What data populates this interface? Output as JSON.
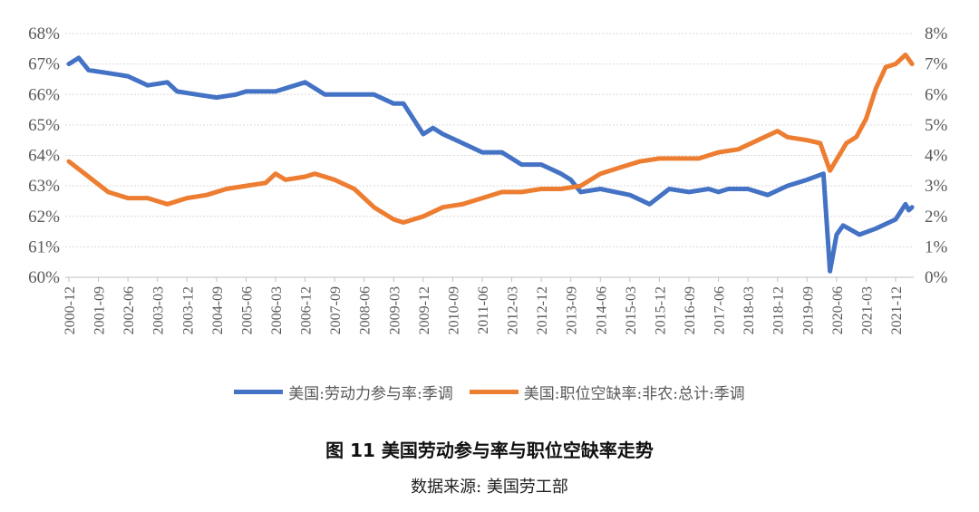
{
  "chart_data": {
    "type": "line",
    "title": "图  11  美国劳动参与率与职位空缺率走势",
    "source": "数据来源:  美国劳工部",
    "grid": true,
    "legend_position": "bottom",
    "y_left": {
      "ticks": [
        "60%",
        "61%",
        "62%",
        "63%",
        "64%",
        "65%",
        "66%",
        "67%",
        "68%"
      ],
      "range": [
        60,
        68
      ]
    },
    "y_right": {
      "ticks": [
        "0%",
        "1%",
        "2%",
        "3%",
        "4%",
        "5%",
        "6%",
        "7%",
        "8%"
      ],
      "range": [
        0,
        8
      ]
    },
    "x_ticks": [
      "2000-12",
      "2001-09",
      "2002-06",
      "2003-03",
      "2003-12",
      "2004-09",
      "2005-06",
      "2006-03",
      "2006-12",
      "2007-09",
      "2008-06",
      "2009-03",
      "2009-12",
      "2010-09",
      "2011-06",
      "2012-03",
      "2012-12",
      "2013-09",
      "2014-06",
      "2015-03",
      "2015-12",
      "2016-09",
      "2017-06",
      "2018-03",
      "2018-12",
      "2019-09",
      "2020-06",
      "2021-03",
      "2021-12"
    ],
    "series": [
      {
        "name": "美国:劳动力参与率:季调",
        "axis": "left",
        "color": "#4472C4",
        "points": [
          [
            "2000-12",
            67.0
          ],
          [
            "2001-03",
            67.2
          ],
          [
            "2001-06",
            66.8
          ],
          [
            "2001-12",
            66.7
          ],
          [
            "2002-06",
            66.6
          ],
          [
            "2002-12",
            66.3
          ],
          [
            "2003-06",
            66.4
          ],
          [
            "2003-09",
            66.1
          ],
          [
            "2004-03",
            66.0
          ],
          [
            "2004-09",
            65.9
          ],
          [
            "2005-03",
            66.0
          ],
          [
            "2005-06",
            66.1
          ],
          [
            "2006-03",
            66.1
          ],
          [
            "2006-12",
            66.4
          ],
          [
            "2007-06",
            66.0
          ],
          [
            "2008-03",
            66.0
          ],
          [
            "2008-09",
            66.0
          ],
          [
            "2009-03",
            65.7
          ],
          [
            "2009-06",
            65.7
          ],
          [
            "2009-12",
            64.7
          ],
          [
            "2010-03",
            64.9
          ],
          [
            "2010-06",
            64.7
          ],
          [
            "2010-12",
            64.4
          ],
          [
            "2011-06",
            64.1
          ],
          [
            "2011-12",
            64.1
          ],
          [
            "2012-06",
            63.7
          ],
          [
            "2012-12",
            63.7
          ],
          [
            "2013-06",
            63.4
          ],
          [
            "2013-09",
            63.2
          ],
          [
            "2013-12",
            62.8
          ],
          [
            "2014-06",
            62.9
          ],
          [
            "2015-03",
            62.7
          ],
          [
            "2015-09",
            62.4
          ],
          [
            "2016-03",
            62.9
          ],
          [
            "2016-09",
            62.8
          ],
          [
            "2017-03",
            62.9
          ],
          [
            "2017-06",
            62.8
          ],
          [
            "2017-09",
            62.9
          ],
          [
            "2018-03",
            62.9
          ],
          [
            "2018-09",
            62.7
          ],
          [
            "2019-03",
            63.0
          ],
          [
            "2019-09",
            63.2
          ],
          [
            "2020-02",
            63.4
          ],
          [
            "2020-04",
            60.2
          ],
          [
            "2020-06",
            61.4
          ],
          [
            "2020-08",
            61.7
          ],
          [
            "2021-01",
            61.4
          ],
          [
            "2021-06",
            61.6
          ],
          [
            "2021-12",
            61.9
          ],
          [
            "2022-03",
            62.4
          ],
          [
            "2022-04",
            62.2
          ],
          [
            "2022-05",
            62.3
          ]
        ]
      },
      {
        "name": "美国:职位空缺率:非农:总计:季调",
        "axis": "right",
        "color": "#ED7D31",
        "points": [
          [
            "2000-12",
            3.8
          ],
          [
            "2001-06",
            3.3
          ],
          [
            "2001-12",
            2.8
          ],
          [
            "2002-06",
            2.6
          ],
          [
            "2002-12",
            2.6
          ],
          [
            "2003-06",
            2.4
          ],
          [
            "2003-12",
            2.6
          ],
          [
            "2004-06",
            2.7
          ],
          [
            "2004-12",
            2.9
          ],
          [
            "2005-06",
            3.0
          ],
          [
            "2005-12",
            3.1
          ],
          [
            "2006-03",
            3.4
          ],
          [
            "2006-06",
            3.2
          ],
          [
            "2006-12",
            3.3
          ],
          [
            "2007-03",
            3.4
          ],
          [
            "2007-09",
            3.2
          ],
          [
            "2008-03",
            2.9
          ],
          [
            "2008-09",
            2.3
          ],
          [
            "2009-03",
            1.9
          ],
          [
            "2009-06",
            1.8
          ],
          [
            "2009-12",
            2.0
          ],
          [
            "2010-06",
            2.3
          ],
          [
            "2010-12",
            2.4
          ],
          [
            "2011-06",
            2.6
          ],
          [
            "2011-12",
            2.8
          ],
          [
            "2012-06",
            2.8
          ],
          [
            "2012-12",
            2.9
          ],
          [
            "2013-06",
            2.9
          ],
          [
            "2013-12",
            3.0
          ],
          [
            "2014-06",
            3.4
          ],
          [
            "2014-12",
            3.6
          ],
          [
            "2015-06",
            3.8
          ],
          [
            "2015-12",
            3.9
          ],
          [
            "2016-06",
            3.9
          ],
          [
            "2016-12",
            3.9
          ],
          [
            "2017-06",
            4.1
          ],
          [
            "2017-12",
            4.2
          ],
          [
            "2018-06",
            4.5
          ],
          [
            "2018-12",
            4.8
          ],
          [
            "2019-03",
            4.6
          ],
          [
            "2019-09",
            4.5
          ],
          [
            "2020-01",
            4.4
          ],
          [
            "2020-04",
            3.5
          ],
          [
            "2020-09",
            4.4
          ],
          [
            "2020-12",
            4.6
          ],
          [
            "2021-03",
            5.2
          ],
          [
            "2021-06",
            6.2
          ],
          [
            "2021-09",
            6.9
          ],
          [
            "2021-12",
            7.0
          ],
          [
            "2022-03",
            7.3
          ],
          [
            "2022-05",
            7.0
          ]
        ]
      }
    ]
  }
}
